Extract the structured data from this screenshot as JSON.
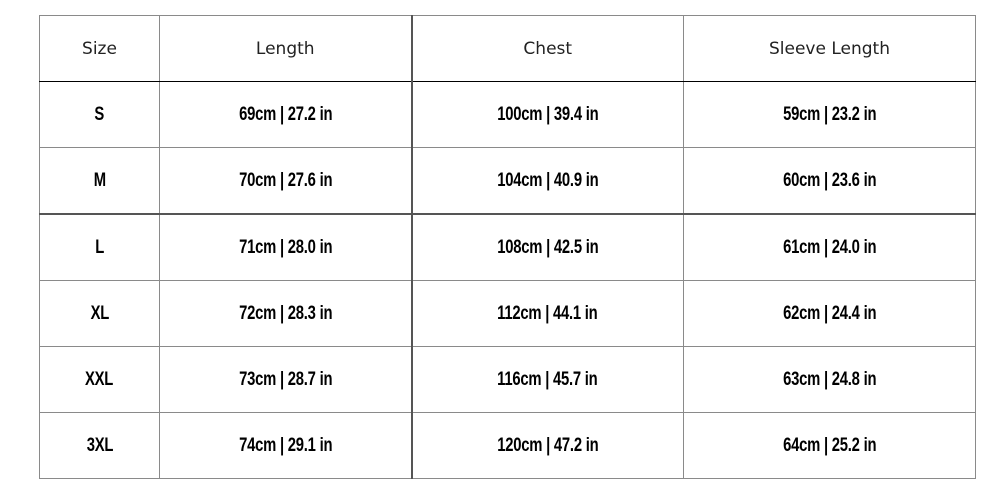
{
  "headers": [
    "Size",
    "Length",
    "Chest",
    "Sleeve Length"
  ],
  "rows": [
    [
      "S",
      "69cm | 27.2 in",
      "100cm | 39.4 in",
      "59cm | 23.2 in"
    ],
    [
      "M",
      "70cm | 27.6 in",
      "104cm | 40.9 in",
      "60cm | 23.6 in"
    ],
    [
      "L",
      "71cm | 28.0 in",
      "108cm | 42.5 in",
      "61cm | 24.0 in"
    ],
    [
      "XL",
      "72cm | 28.3 in",
      "112cm | 44.1 in",
      "62cm | 24.4 in"
    ],
    [
      "XXL",
      "73cm | 28.7 in",
      "116cm | 45.7 in",
      "63cm | 24.8 in"
    ],
    [
      "3XL",
      "74cm | 29.1 in",
      "120cm | 47.2 in",
      "64cm | 25.2 in"
    ]
  ]
}
